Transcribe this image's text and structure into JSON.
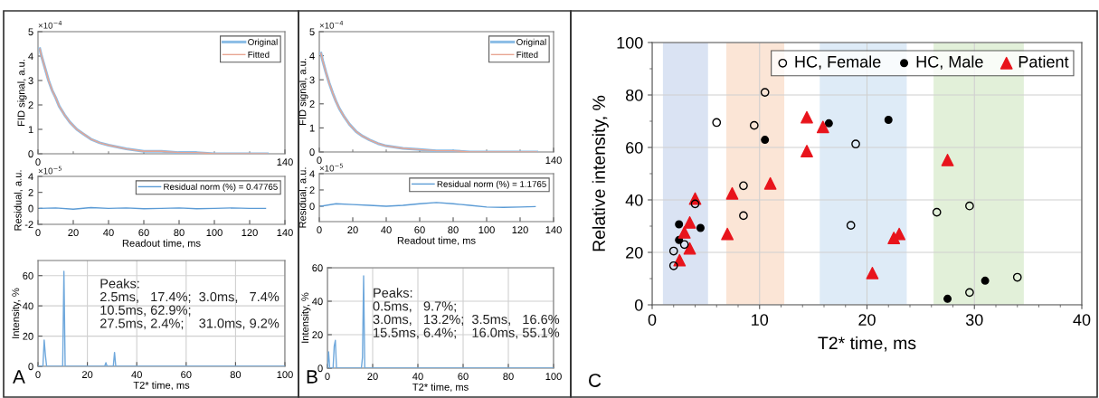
{
  "chart_data": [
    {
      "type": "line",
      "ylabel": "FID signal, a.u.",
      "xlim": [
        0,
        140
      ],
      "xticks": [
        0,
        {
          "value": 20,
          "label": null
        },
        {
          "value": 40,
          "label": null
        },
        {
          "value": 60,
          "label": null
        },
        {
          "value": 80,
          "label": null
        },
        {
          "value": 100,
          "label": null
        },
        {
          "value": 120,
          "label": null
        },
        140
      ],
      "ylim": [
        0,
        5
      ],
      "yticks": [
        0,
        1,
        2,
        3,
        4,
        5
      ],
      "annotations": [
        "×10$^{−4}$"
      ],
      "legend": "top right",
      "grid": false,
      "series": [
        {
          "name": "Original",
          "color": "#8cbde6",
          "x": [
            1,
            2,
            4,
            6,
            8,
            10,
            12,
            15,
            18,
            22,
            26,
            30,
            35,
            40,
            50,
            60,
            70,
            80,
            90,
            100,
            115,
            130
          ],
          "values": [
            4.3,
            4.0,
            3.5,
            3.0,
            2.6,
            2.3,
            1.95,
            1.6,
            1.3,
            1.0,
            0.8,
            0.6,
            0.45,
            0.35,
            0.2,
            0.1,
            0.1,
            0.05,
            0.05,
            0.0,
            0.0,
            0.0
          ]
        },
        {
          "name": "Fitted",
          "color": "#e8a592",
          "x": [
            1,
            2,
            4,
            6,
            8,
            10,
            12,
            15,
            18,
            22,
            26,
            30,
            35,
            40,
            50,
            60,
            70,
            80,
            90,
            100,
            115,
            130
          ],
          "values": [
            4.3,
            4.0,
            3.5,
            3.0,
            2.6,
            2.3,
            1.95,
            1.6,
            1.3,
            1.0,
            0.8,
            0.6,
            0.45,
            0.35,
            0.2,
            0.1,
            0.1,
            0.05,
            0.05,
            0.0,
            0.0,
            0.0
          ]
        }
      ]
    },
    {
      "type": "line",
      "xlabel": "Readout time, ms",
      "ylabel": "Residual, a.u.",
      "xlim": [
        0,
        140
      ],
      "xticks": [
        0,
        20,
        40,
        60,
        80,
        100,
        120,
        140
      ],
      "ylim": [
        -2,
        4
      ],
      "yticks": [
        -2,
        0,
        2,
        4
      ],
      "annotations": [
        "×10$^{−5}$"
      ],
      "legend": "top right",
      "grid": false,
      "series": [
        {
          "name": "Residual norm (%) = 0.47765",
          "color": "#5b9bd5",
          "x": [
            1,
            10,
            20,
            30,
            40,
            50,
            60,
            70,
            80,
            90,
            100,
            110,
            120,
            129
          ],
          "values": [
            0,
            0.05,
            -0.1,
            0.1,
            0,
            0.05,
            -0.05,
            0,
            0.05,
            -0.05,
            0,
            0.05,
            0,
            0
          ]
        }
      ]
    },
    {
      "type": "line",
      "xlabel": "T2* time, ms",
      "ylabel": "Intensity, %",
      "xlim": [
        0,
        100
      ],
      "xticks": [
        0,
        20,
        40,
        60,
        80,
        100
      ],
      "ylim": [
        0,
        70
      ],
      "yticks": [
        0,
        20,
        40,
        60
      ],
      "grid": true,
      "legend": false,
      "annotations": [
        "Peaks:\n2.5ms,   17.4%;  3.0ms,   7.4%\n10.5ms, 62.9%;\n27.5ms, 2.4%;    31.0ms, 9.2%",
        "A"
      ],
      "series": [
        {
          "color": "#6fa8dc",
          "x": [
            0,
            2,
            2.5,
            3.0,
            3.5,
            10,
            10.5,
            11,
            27,
            27.5,
            28,
            30.5,
            31,
            31.5,
            100
          ],
          "values": [
            0,
            0,
            17.4,
            7.4,
            0,
            0,
            62.9,
            0,
            0,
            2.4,
            0,
            0,
            9.2,
            0,
            0
          ]
        }
      ]
    },
    {
      "type": "line",
      "ylabel": "FID signal, a.u.",
      "xlim": [
        0,
        140
      ],
      "xticks": [
        0,
        {
          "value": 20,
          "label": null
        },
        {
          "value": 40,
          "label": null
        },
        {
          "value": 60,
          "label": null
        },
        {
          "value": 80,
          "label": null
        },
        {
          "value": 100,
          "label": null
        },
        {
          "value": 120,
          "label": null
        },
        140
      ],
      "ylim": [
        0,
        5
      ],
      "yticks": [
        0,
        1,
        2,
        3,
        4,
        5
      ],
      "annotations": [
        "×10$^{−4}$"
      ],
      "legend": "top right",
      "grid": false,
      "series": [
        {
          "name": "Original",
          "color": "#8cbde6",
          "x": [
            1,
            2,
            4,
            6,
            8,
            10,
            12,
            15,
            18,
            22,
            26,
            30,
            35,
            40,
            50,
            60,
            70,
            80,
            90,
            100,
            115,
            130
          ],
          "values": [
            4.1,
            3.8,
            3.3,
            2.85,
            2.45,
            2.1,
            1.8,
            1.45,
            1.15,
            0.85,
            0.65,
            0.5,
            0.35,
            0.25,
            0.15,
            0.1,
            0.05,
            0.05,
            0.0,
            0.0,
            0.0,
            0.0
          ]
        },
        {
          "name": "Fitted",
          "color": "#e8a592",
          "x": [
            1,
            2,
            4,
            6,
            8,
            10,
            12,
            15,
            18,
            22,
            26,
            30,
            35,
            40,
            50,
            60,
            70,
            80,
            90,
            100,
            115,
            130
          ],
          "values": [
            4.1,
            3.8,
            3.3,
            2.85,
            2.45,
            2.1,
            1.8,
            1.45,
            1.15,
            0.85,
            0.65,
            0.5,
            0.35,
            0.25,
            0.15,
            0.1,
            0.05,
            0.05,
            0.0,
            0.0,
            0.0,
            0.0
          ]
        }
      ]
    },
    {
      "type": "line",
      "xlabel": "Readout time, ms",
      "ylabel": "Residual, a.u.",
      "xlim": [
        0,
        140
      ],
      "xticks": [
        0,
        20,
        40,
        60,
        80,
        100,
        120,
        140
      ],
      "ylim": [
        -1.9,
        4
      ],
      "yticks": [
        0,
        2,
        4
      ],
      "annotations": [
        "×10$^{−5}$"
      ],
      "legend": "top right",
      "grid": false,
      "series": [
        {
          "name": "Residual norm (%) = 1.1765",
          "color": "#5b9bd5",
          "x": [
            1,
            10,
            20,
            30,
            40,
            50,
            60,
            70,
            80,
            90,
            100,
            110,
            120,
            129
          ],
          "values": [
            0,
            0.3,
            0.2,
            0.1,
            0,
            0.1,
            0.3,
            0.45,
            0.3,
            0.1,
            -0.1,
            -0.15,
            -0.1,
            -0.05
          ]
        }
      ]
    },
    {
      "type": "line",
      "xlabel": "T2* time, ms",
      "ylabel": "Intensity, %",
      "xlim": [
        0,
        100
      ],
      "xticks": [
        0,
        20,
        40,
        60,
        80,
        100
      ],
      "ylim": [
        0,
        60
      ],
      "yticks": [
        0,
        20,
        40,
        60
      ],
      "grid": true,
      "legend": false,
      "annotations": [
        "Peaks:\n0.5ms,   9.7%;\n3.0ms,   13.2%;  3.5ms,   16.6%\n15.5ms, 6.4%;    16.0ms, 55.1%",
        "B"
      ],
      "series": [
        {
          "color": "#6fa8dc",
          "x": [
            0,
            0.5,
            1,
            2.5,
            3.0,
            3.5,
            4,
            15,
            15.5,
            16,
            16.5,
            100
          ],
          "values": [
            0,
            9.7,
            0,
            0,
            13.2,
            16.6,
            0,
            0,
            6.4,
            55.1,
            0,
            0
          ]
        }
      ]
    },
    {
      "type": "scatter",
      "xlabel": "T2* time, ms",
      "ylabel": "Relative intensity, %",
      "xlim": [
        0,
        40
      ],
      "xticks": [
        0,
        {
          "value": 2,
          "label": null
        },
        {
          "value": 4,
          "label": null
        },
        {
          "value": 6,
          "label": null
        },
        {
          "value": 8,
          "label": null
        },
        10,
        {
          "value": 12,
          "label": null
        },
        {
          "value": 14,
          "label": null
        },
        {
          "value": 16,
          "label": null
        },
        {
          "value": 18,
          "label": null
        },
        20,
        {
          "value": 22,
          "label": null
        },
        {
          "value": 24,
          "label": null
        },
        {
          "value": 26,
          "label": null
        },
        {
          "value": 28,
          "label": null
        },
        30,
        {
          "value": 32,
          "label": null
        },
        {
          "value": 34,
          "label": null
        },
        {
          "value": 36,
          "label": null
        },
        {
          "value": 38,
          "label": null
        },
        40
      ],
      "ylim": [
        0,
        100
      ],
      "yticks": [
        0,
        {
          "value": 10,
          "label": null
        },
        20,
        {
          "value": 30,
          "label": null
        },
        40,
        {
          "value": 50,
          "label": null
        },
        60,
        {
          "value": 70,
          "label": null
        },
        80,
        {
          "value": 90,
          "label": null
        },
        100
      ],
      "grid": true,
      "legend": "top right",
      "annotations": [
        "C"
      ],
      "bands": [
        {
          "axis": "x",
          "from": 1.0,
          "to": 5.2,
          "color": "#dae3f3"
        },
        {
          "axis": "x",
          "from": 6.9,
          "to": 12.3,
          "color": "#fbe5d6"
        },
        {
          "axis": "x",
          "from": 15.6,
          "to": 23.7,
          "color": "#deebf7"
        },
        {
          "axis": "x",
          "from": 26.2,
          "to": 34.6,
          "color": "#e2f0d9"
        }
      ],
      "series": [
        {
          "name": "HC, Female",
          "color": "#000000",
          "marker": "circle-open",
          "x": [
            2.0,
            2.0,
            3.0,
            4.0,
            6.0,
            8.5,
            8.5,
            9.5,
            10.5,
            18.95,
            18.5,
            26.5,
            29.55,
            29.55,
            34.0
          ],
          "values": [
            14.9,
            20.5,
            23.0,
            38.5,
            69.5,
            45.4,
            34.0,
            68.4,
            81.0,
            61.3,
            30.3,
            35.3,
            37.7,
            4.7,
            10.5
          ]
        },
        {
          "name": "HC, Male",
          "color": "#000000",
          "marker": "circle",
          "x": [
            2.5,
            2.5,
            4.5,
            10.5,
            16.45,
            22.0,
            27.5,
            31.0
          ],
          "values": [
            30.7,
            24.7,
            29.3,
            62.9,
            69.2,
            70.5,
            2.3,
            9.2
          ]
        },
        {
          "name": "Patient",
          "color": "#e8141c",
          "marker": "triangle",
          "x": [
            2.55,
            3.0,
            3.5,
            3.5,
            4.0,
            7.0,
            7.45,
            11.0,
            14.4,
            14.4,
            15.9,
            20.5,
            22.5,
            23.0,
            27.5
          ],
          "values": [
            17.0,
            27.6,
            31.4,
            21.5,
            40.5,
            27.0,
            42.5,
            46.3,
            71.5,
            58.6,
            67.8,
            12.1,
            25.5,
            27.0,
            55.2
          ]
        }
      ]
    }
  ]
}
